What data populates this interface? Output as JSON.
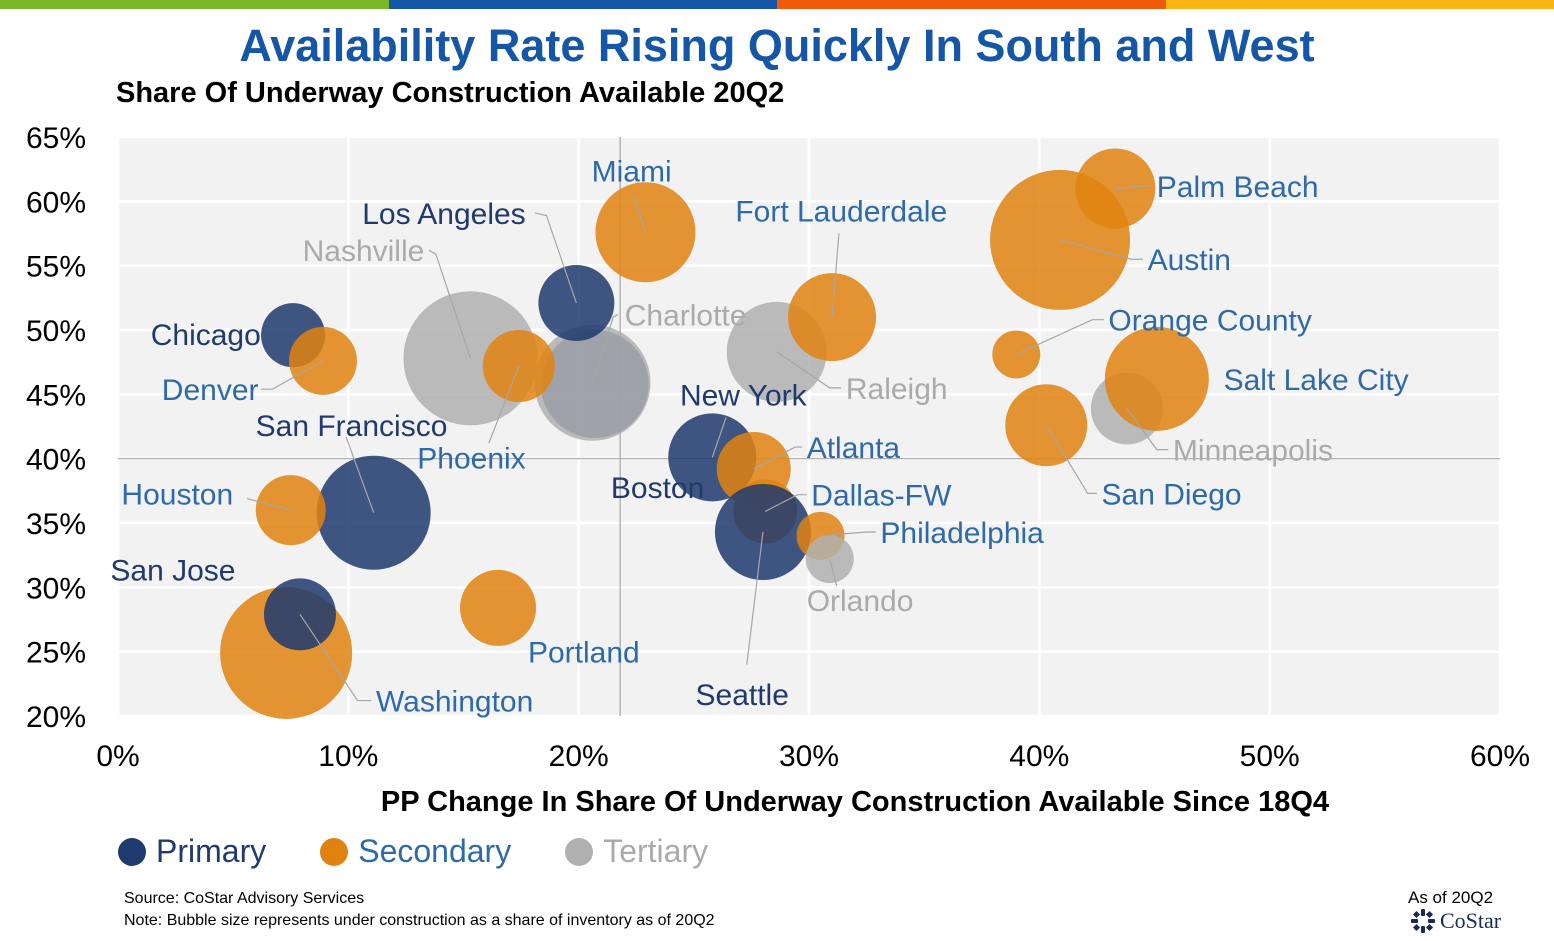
{
  "header": {
    "title": "Availability Rate Rising Quickly In South and West",
    "subtitle": "Share Of Underway Construction Available 20Q2",
    "bar_colors": [
      "#7ab828",
      "#1656a6",
      "#f05a0a",
      "#fbb514"
    ]
  },
  "legend": {
    "items": [
      {
        "label": "Primary",
        "color": "#1f3a6e",
        "text_color": "#1f3a6e"
      },
      {
        "label": "Secondary",
        "color": "#e0820f",
        "text_color": "#2e6aa8"
      },
      {
        "label": "Tertiary",
        "color": "#b0b0b0",
        "text_color": "#aaaaaa"
      }
    ]
  },
  "footer": {
    "source": "Source: CoStar Advisory Services",
    "note": "Note: Bubble size represents under construction as a share of inventory as of 20Q2",
    "asof": "As of 20Q2",
    "logo_text": "CoStar"
  },
  "chart_data": {
    "type": "scatter",
    "xlabel": "PP Change In Share Of Underway Construction Available Since 18Q4",
    "xlim": [
      0,
      60
    ],
    "ylim": [
      20,
      65
    ],
    "x_ticks": [
      0,
      10,
      20,
      30,
      40,
      50,
      60
    ],
    "y_ticks": [
      20,
      25,
      30,
      35,
      40,
      45,
      50,
      55,
      60,
      65
    ],
    "x_tick_labels": [
      "0%",
      "10%",
      "20%",
      "30%",
      "40%",
      "50%",
      "60%"
    ],
    "y_tick_labels": [
      "20%",
      "25%",
      "30%",
      "35%",
      "40%",
      "45%",
      "50%",
      "55%",
      "60%",
      "65%"
    ],
    "reference_lines": {
      "x": 21.8,
      "y": 40
    },
    "grid": true,
    "size_note": "Bubble size represents under construction as a share of inventory",
    "colors": {
      "Primary": "#1f3a6e",
      "Secondary": "#e0820f",
      "Tertiary": "#b0b0b0"
    },
    "label_colors": {
      "Primary": "#1f3a6e",
      "Secondary": "#2e6aa8",
      "Tertiary": "#aaaaaa"
    },
    "points": [
      {
        "name": "Nashville",
        "tier": "Tertiary",
        "x": 15.3,
        "y": 47.8,
        "r": 67
      },
      {
        "name": "Boston",
        "tier": "Primary",
        "x": 20.7,
        "y": 45.8,
        "r": 54
      },
      {
        "name": "Charlotte",
        "tier": "Tertiary",
        "x": 20.6,
        "y": 45.9,
        "r": 58
      },
      {
        "name": "Raleigh",
        "tier": "Tertiary",
        "x": 28.6,
        "y": 48.3,
        "r": 50
      },
      {
        "name": "Austin",
        "tier": "Secondary",
        "x": 40.9,
        "y": 57.0,
        "r": 70
      },
      {
        "name": "Washington",
        "tier": "Secondary",
        "x": 7.3,
        "y": 24.9,
        "r": 66
      },
      {
        "name": "San Francisco",
        "tier": "Primary",
        "x": 11.1,
        "y": 35.8,
        "r": 57
      },
      {
        "name": "Chicago",
        "tier": "Primary",
        "x": 7.6,
        "y": 49.6,
        "r": 32
      },
      {
        "name": "Denver",
        "tier": "Secondary",
        "x": 8.9,
        "y": 47.6,
        "r": 34
      },
      {
        "name": "Houston",
        "tier": "Secondary",
        "x": 7.5,
        "y": 36.0,
        "r": 35
      },
      {
        "name": "San Jose",
        "tier": "Primary",
        "x": 7.9,
        "y": 27.9,
        "r": 36
      },
      {
        "name": "Portland",
        "tier": "Secondary",
        "x": 16.5,
        "y": 28.4,
        "r": 38
      },
      {
        "name": "Phoenix",
        "tier": "Secondary",
        "x": 17.4,
        "y": 47.2,
        "r": 36
      },
      {
        "name": "Los Angeles",
        "tier": "Primary",
        "x": 19.9,
        "y": 52.1,
        "r": 38
      },
      {
        "name": "Miami",
        "tier": "Secondary",
        "x": 22.9,
        "y": 57.6,
        "r": 50
      },
      {
        "name": "New York",
        "tier": "Primary",
        "x": 25.8,
        "y": 40.1,
        "r": 44
      },
      {
        "name": "Atlanta",
        "tier": "Secondary",
        "x": 27.6,
        "y": 39.2,
        "r": 37
      },
      {
        "name": "Dallas-FW",
        "tier": "Secondary",
        "x": 28.1,
        "y": 35.9,
        "r": 32
      },
      {
        "name": "Seattle",
        "tier": "Primary",
        "x": 28.0,
        "y": 34.3,
        "r": 48
      },
      {
        "name": "Philadelphia",
        "tier": "Secondary",
        "x": 30.5,
        "y": 34.0,
        "r": 24
      },
      {
        "name": "Orlando",
        "tier": "Tertiary",
        "x": 30.9,
        "y": 32.2,
        "r": 24
      },
      {
        "name": "Fort Lauderdale",
        "tier": "Secondary",
        "x": 31.0,
        "y": 51.0,
        "r": 44
      },
      {
        "name": "Palm Beach",
        "tier": "Secondary",
        "x": 43.3,
        "y": 61.0,
        "r": 40
      },
      {
        "name": "Orange County",
        "tier": "Secondary",
        "x": 39.0,
        "y": 48.1,
        "r": 24
      },
      {
        "name": "San Diego",
        "tier": "Secondary",
        "x": 40.3,
        "y": 42.6,
        "r": 41
      },
      {
        "name": "Minneapolis",
        "tier": "Tertiary",
        "x": 43.8,
        "y": 43.9,
        "r": 36
      },
      {
        "name": "Salt Lake City",
        "tier": "Secondary",
        "x": 45.1,
        "y": 46.2,
        "r": 52
      }
    ],
    "labels": [
      {
        "name": "Miami",
        "lx": 22.3,
        "ly": 62.4,
        "anchor": "middle",
        "line": [
          [
            22.4,
            60.4
          ],
          [
            22.9,
            57.6
          ]
        ]
      },
      {
        "name": "Los Angeles",
        "lx": 17.7,
        "ly": 59.1,
        "anchor": "end",
        "line": [
          [
            18.1,
            59.1
          ],
          [
            18.6,
            58.9
          ],
          [
            19.9,
            52.1
          ]
        ]
      },
      {
        "name": "Nashville",
        "lx": 13.3,
        "ly": 56.2,
        "anchor": "end",
        "line": [
          [
            13.5,
            56.2
          ],
          [
            13.8,
            55.9
          ],
          [
            15.3,
            47.8
          ]
        ]
      },
      {
        "name": "Fort Lauderdale",
        "lx": 31.4,
        "ly": 59.3,
        "anchor": "middle",
        "line": [
          [
            31.3,
            57.5
          ],
          [
            31.0,
            51.0
          ]
        ]
      },
      {
        "name": "Palm Beach",
        "lx": 45.1,
        "ly": 61.2,
        "anchor": "start",
        "line": [
          [
            44.9,
            61.2
          ],
          [
            44.5,
            61.2
          ],
          [
            43.3,
            61.0
          ]
        ]
      },
      {
        "name": "Austin",
        "lx": 44.7,
        "ly": 55.5,
        "anchor": "start",
        "line": [
          [
            44.5,
            55.5
          ],
          [
            44.0,
            55.5
          ],
          [
            40.9,
            57.0
          ]
        ]
      },
      {
        "name": "Orange County",
        "lx": 43.0,
        "ly": 50.8,
        "anchor": "start",
        "line": [
          [
            42.8,
            50.8
          ],
          [
            42.3,
            50.8
          ],
          [
            39.0,
            48.1
          ]
        ]
      },
      {
        "name": "Charlotte",
        "lx": 22.0,
        "ly": 51.2,
        "anchor": "start",
        "line": [
          [
            21.7,
            51.2
          ],
          [
            21.5,
            51.0
          ],
          [
            20.6,
            45.9
          ]
        ]
      },
      {
        "name": "Chicago",
        "lx": 6.2,
        "ly": 49.7,
        "anchor": "end",
        "line": null
      },
      {
        "name": "Denver",
        "lx": 6.1,
        "ly": 45.4,
        "anchor": "end",
        "line": [
          [
            6.2,
            45.4
          ],
          [
            6.7,
            45.4
          ],
          [
            8.9,
            47.6
          ]
        ]
      },
      {
        "name": "Raleigh",
        "lx": 31.6,
        "ly": 45.5,
        "anchor": "start",
        "line": [
          [
            31.4,
            45.5
          ],
          [
            30.9,
            45.5
          ],
          [
            28.6,
            48.3
          ]
        ]
      },
      {
        "name": "Salt Lake City",
        "lx": 48.0,
        "ly": 46.2,
        "anchor": "start",
        "line": null
      },
      {
        "name": "New York",
        "lx": 29.9,
        "ly": 45.0,
        "anchor": "end",
        "line": [
          [
            26.4,
            43.2
          ],
          [
            25.8,
            40.1
          ]
        ]
      },
      {
        "name": "San Francisco",
        "lx": 14.3,
        "ly": 42.6,
        "anchor": "end",
        "line": [
          [
            9.9,
            41.7
          ],
          [
            11.1,
            35.8
          ]
        ]
      },
      {
        "name": "Phoenix",
        "lx": 17.7,
        "ly": 40.1,
        "anchor": "end",
        "line": [
          [
            16.1,
            41.2
          ],
          [
            17.4,
            47.2
          ]
        ]
      },
      {
        "name": "Atlanta",
        "lx": 29.9,
        "ly": 40.9,
        "anchor": "start",
        "line": [
          [
            29.7,
            40.9
          ],
          [
            29.4,
            40.9
          ],
          [
            27.6,
            39.2
          ]
        ]
      },
      {
        "name": "Minneapolis",
        "lx": 45.8,
        "ly": 40.7,
        "anchor": "start",
        "line": [
          [
            45.6,
            40.7
          ],
          [
            45.1,
            40.7
          ],
          [
            43.8,
            43.9
          ]
        ]
      },
      {
        "name": "Boston",
        "lx": 21.4,
        "ly": 37.8,
        "anchor": "start",
        "line": null
      },
      {
        "name": "Houston",
        "lx": 5.0,
        "ly": 37.3,
        "anchor": "end",
        "line": [
          [
            5.6,
            36.9
          ],
          [
            7.5,
            36.0
          ]
        ]
      },
      {
        "name": "Dallas-FW",
        "lx": 30.1,
        "ly": 37.2,
        "anchor": "start",
        "line": [
          [
            29.9,
            37.2
          ],
          [
            29.5,
            37.2
          ],
          [
            28.1,
            35.9
          ]
        ]
      },
      {
        "name": "San Diego",
        "lx": 42.7,
        "ly": 37.3,
        "anchor": "start",
        "line": [
          [
            42.5,
            37.3
          ],
          [
            42.1,
            37.3
          ],
          [
            40.3,
            42.6
          ]
        ]
      },
      {
        "name": "Philadelphia",
        "lx": 33.1,
        "ly": 34.3,
        "anchor": "start",
        "line": [
          [
            32.9,
            34.3
          ],
          [
            32.5,
            34.3
          ],
          [
            30.5,
            34.0
          ]
        ]
      },
      {
        "name": "San Jose",
        "lx": 5.1,
        "ly": 31.4,
        "anchor": "end",
        "line": null
      },
      {
        "name": "Orlando",
        "lx": 29.9,
        "ly": 29.0,
        "anchor": "start",
        "line": [
          [
            31.2,
            30.1
          ],
          [
            30.9,
            32.2
          ]
        ]
      },
      {
        "name": "Portland",
        "lx": 17.8,
        "ly": 25.0,
        "anchor": "start",
        "line": null
      },
      {
        "name": "Seattle",
        "lx": 27.1,
        "ly": 21.7,
        "anchor": "middle",
        "line": [
          [
            27.3,
            24.0
          ],
          [
            28.0,
            34.3
          ]
        ]
      },
      {
        "name": "Washington",
        "lx": 11.2,
        "ly": 21.2,
        "anchor": "start",
        "line": [
          [
            11.0,
            21.2
          ],
          [
            10.4,
            21.2
          ],
          [
            7.9,
            27.9
          ]
        ]
      }
    ]
  }
}
